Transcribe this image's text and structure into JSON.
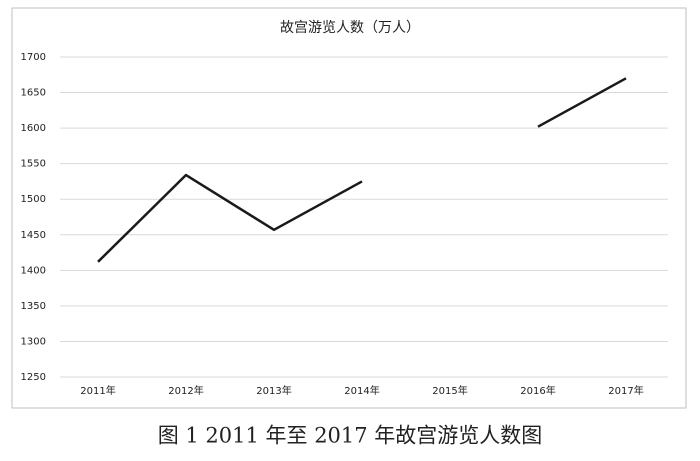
{
  "chart_data": {
    "type": "line",
    "title": "故宫游览人数（万人）",
    "caption": "图 1 2011 年至 2017 年故宫游览人数图",
    "categories": [
      "2011年",
      "2012年",
      "2013年",
      "2014年",
      "2015年",
      "2016年",
      "2017年"
    ],
    "series": [
      {
        "color": "#1a1a1a",
        "values": [
          1412,
          1534,
          1457,
          1525,
          null,
          1602,
          1670
        ]
      }
    ],
    "ylim": [
      1250,
      1700
    ],
    "yticks": [
      1250,
      1300,
      1350,
      1400,
      1450,
      1500,
      1550,
      1600,
      1650,
      1700
    ],
    "grid": true
  }
}
